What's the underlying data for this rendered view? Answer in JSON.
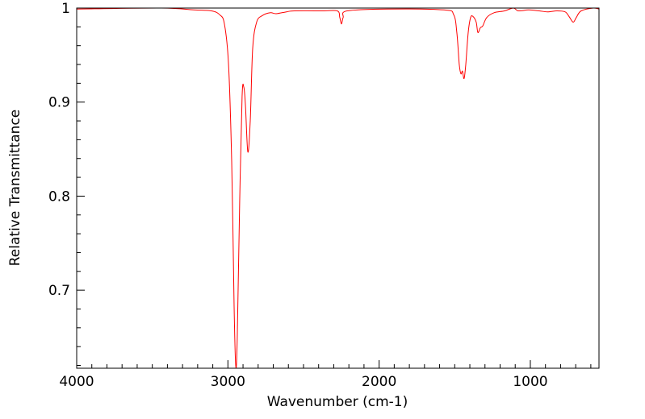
{
  "chart_data": {
    "type": "line",
    "title": "",
    "xlabel": "Wavenumber (cm-1)",
    "ylabel": "Relative Transmittance",
    "xlim": [
      4000,
      546
    ],
    "ylim": [
      0.617,
      1.0
    ],
    "x_reversed": true,
    "grid": false,
    "x_ticks": [
      4000,
      3000,
      2000,
      1000
    ],
    "x_tick_labels": [
      "4000",
      "3000",
      "2000",
      "1000"
    ],
    "y_ticks": [
      1,
      0.9,
      0.8,
      0.7
    ],
    "y_tick_labels": [
      "1",
      "0.9",
      "0.8",
      "0.7"
    ],
    "series": [
      {
        "name": "spectrum",
        "color": "#ff0000",
        "x": [
          4000,
          3440,
          3226,
          3109,
          3055,
          3023,
          2996,
          2975,
          2959,
          2948,
          2938,
          2922,
          2906,
          2895,
          2884,
          2868,
          2852,
          2836,
          2810,
          2772,
          2719,
          2681,
          2612,
          2559,
          2372,
          2276,
          2260,
          2249,
          2238,
          2212,
          1945,
          1571,
          1507,
          1486,
          1470,
          1459,
          1449,
          1438,
          1427,
          1411,
          1395,
          1379,
          1358,
          1347,
          1331,
          1315,
          1288,
          1240,
          1171,
          1112,
          1080,
          1010,
          941,
          887,
          824,
          770,
          744,
          717,
          696,
          664,
          584,
          546
        ],
        "y": [
          0.999,
          1.0,
          0.998,
          0.997,
          0.993,
          0.983,
          0.94,
          0.837,
          0.683,
          0.619,
          0.649,
          0.794,
          0.906,
          0.916,
          0.897,
          0.847,
          0.88,
          0.957,
          0.985,
          0.992,
          0.995,
          0.994,
          0.996,
          0.997,
          0.997,
          0.997,
          0.99,
          0.983,
          0.99,
          0.997,
          0.999,
          0.998,
          0.993,
          0.974,
          0.94,
          0.93,
          0.933,
          0.925,
          0.94,
          0.974,
          0.99,
          0.991,
          0.985,
          0.974,
          0.979,
          0.981,
          0.99,
          0.995,
          0.997,
          1.0,
          0.997,
          0.998,
          0.997,
          0.996,
          0.997,
          0.996,
          0.991,
          0.985,
          0.99,
          0.997,
          1.0,
          0.999
        ]
      }
    ]
  }
}
